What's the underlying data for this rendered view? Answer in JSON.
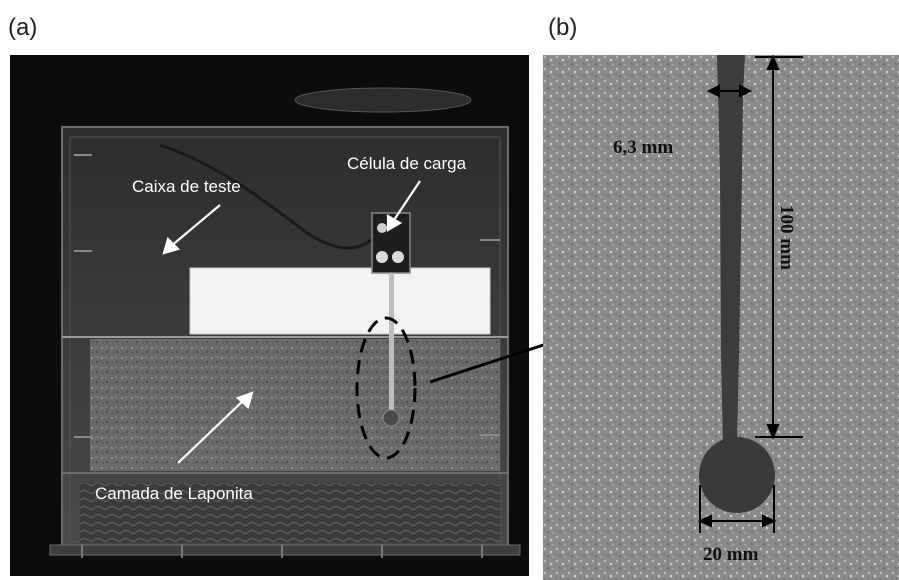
{
  "panels": {
    "a": {
      "label": "(a)",
      "annotations": {
        "test_box": "Caixa de teste",
        "load_cell": "Célula de carga",
        "laponite_layer": "Camada de Laponita"
      }
    },
    "b": {
      "label": "(b)",
      "dimensions": {
        "rod_width": "6,3 mm",
        "rod_length": "100 mm",
        "ball_diameter": "20 mm"
      }
    }
  }
}
